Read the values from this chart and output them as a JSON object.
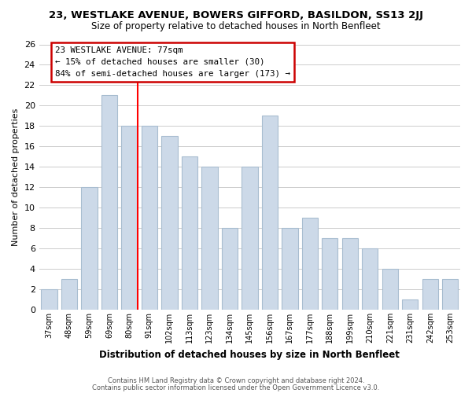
{
  "title1": "23, WESTLAKE AVENUE, BOWERS GIFFORD, BASILDON, SS13 2JJ",
  "title2": "Size of property relative to detached houses in North Benfleet",
  "xlabel": "Distribution of detached houses by size in North Benfleet",
  "ylabel": "Number of detached properties",
  "bar_labels": [
    "37sqm",
    "48sqm",
    "59sqm",
    "69sqm",
    "80sqm",
    "91sqm",
    "102sqm",
    "113sqm",
    "123sqm",
    "134sqm",
    "145sqm",
    "156sqm",
    "167sqm",
    "177sqm",
    "188sqm",
    "199sqm",
    "210sqm",
    "221sqm",
    "231sqm",
    "242sqm",
    "253sqm"
  ],
  "bar_values": [
    2,
    3,
    12,
    21,
    18,
    18,
    17,
    15,
    14,
    8,
    14,
    19,
    8,
    9,
    7,
    7,
    6,
    4,
    1,
    3,
    3
  ],
  "bar_color": "#ccd9e8",
  "bar_edgecolor": "#a8bdd0",
  "red_line_index": 4,
  "annotation_title": "23 WESTLAKE AVENUE: 77sqm",
  "annotation_line1": "← 15% of detached houses are smaller (30)",
  "annotation_line2": "84% of semi-detached houses are larger (173) →",
  "annotation_box_edgecolor": "#cc0000",
  "ylim": [
    0,
    26
  ],
  "yticks": [
    0,
    2,
    4,
    6,
    8,
    10,
    12,
    14,
    16,
    18,
    20,
    22,
    24,
    26
  ],
  "footer1": "Contains HM Land Registry data © Crown copyright and database right 2024.",
  "footer2": "Contains public sector information licensed under the Open Government Licence v3.0.",
  "bg_color": "#ffffff",
  "grid_color": "#cccccc"
}
